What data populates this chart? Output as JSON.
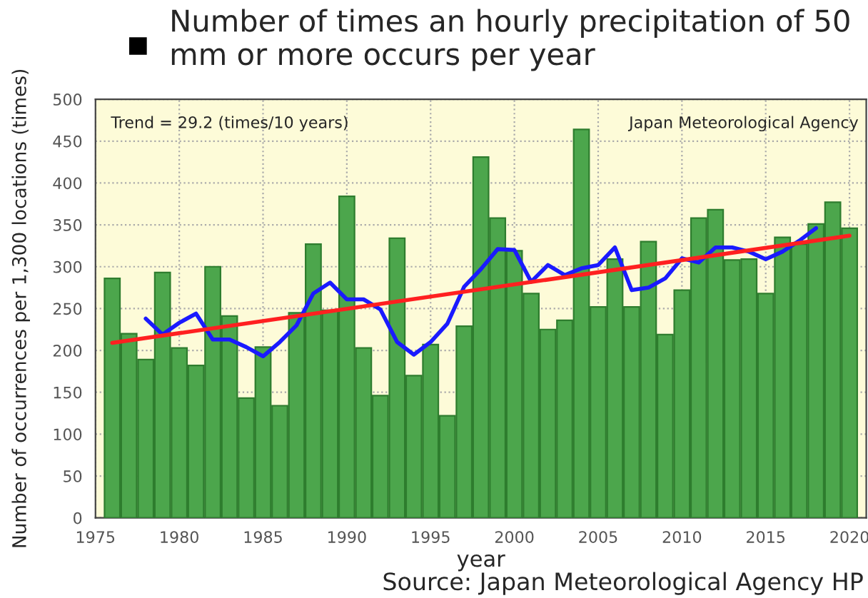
{
  "chart_data": {
    "type": "bar",
    "title": "Number of times an hourly precipitation of 50 mm or more occurs per year",
    "xlabel": "year",
    "ylabel": "Number of occurrences per 1,300 locations (times)",
    "annotations": [
      "Trend = 29.2 (times/10 years)",
      "Japan Meteorological Agency",
      "Source: Japan Meteorological Agency HP"
    ],
    "xlim": [
      1975,
      2021
    ],
    "xticks": [
      1975,
      1980,
      1985,
      1990,
      1995,
      2000,
      2005,
      2010,
      2015,
      2020
    ],
    "ylim": [
      0,
      500
    ],
    "yticks": [
      0,
      50,
      100,
      150,
      200,
      250,
      300,
      350,
      400,
      450,
      500
    ],
    "grid": true,
    "legend": false,
    "series": [
      {
        "color": "#4ca64c",
        "x": [
          1976,
          1977,
          1978,
          1979,
          1980,
          1981,
          1982,
          1983,
          1984,
          1985,
          1986,
          1987,
          1988,
          1989,
          1990,
          1991,
          1992,
          1993,
          1994,
          1995,
          1996,
          1997,
          1998,
          1999,
          2000,
          2001,
          2002,
          2003,
          2004,
          2005,
          2006,
          2007,
          2008,
          2009,
          2010,
          2011,
          2012,
          2013,
          2014,
          2015,
          2016,
          2017,
          2018,
          2019,
          2020
        ],
        "values": [
          286,
          220,
          189,
          293,
          203,
          182,
          300,
          241,
          143,
          204,
          134,
          245,
          327,
          248,
          384,
          203,
          146,
          334,
          170,
          207,
          122,
          229,
          431,
          358,
          319,
          268,
          225,
          236,
          464,
          252,
          309,
          252,
          330,
          219,
          272,
          358,
          368,
          308,
          309,
          268,
          335,
          327,
          351,
          377,
          346
        ]
      },
      {
        "type": "line",
        "color": "#1a1aff",
        "x": [
          1978,
          1979,
          1980,
          1981,
          1982,
          1983,
          1984,
          1985,
          1986,
          1987,
          1988,
          1989,
          1990,
          1991,
          1992,
          1993,
          1994,
          1995,
          1996,
          1997,
          1998,
          1999,
          2000,
          2001,
          2002,
          2003,
          2004,
          2005,
          2006,
          2007,
          2008,
          2009,
          2010,
          2011,
          2012,
          2013,
          2014,
          2015,
          2016,
          2017,
          2018
        ],
        "values": [
          238,
          219,
          233,
          244,
          213,
          213,
          204,
          193,
          210,
          230,
          268,
          281,
          261,
          261,
          249,
          210,
          195,
          210,
          232,
          276,
          297,
          321,
          320,
          282,
          302,
          290,
          298,
          302,
          323,
          272,
          275,
          286,
          310,
          305,
          323,
          323,
          318,
          309,
          318,
          331,
          346
        ]
      },
      {
        "type": "line",
        "color": "#ff2020",
        "x": [
          1976,
          2020
        ],
        "values": [
          209,
          337
        ]
      }
    ]
  }
}
